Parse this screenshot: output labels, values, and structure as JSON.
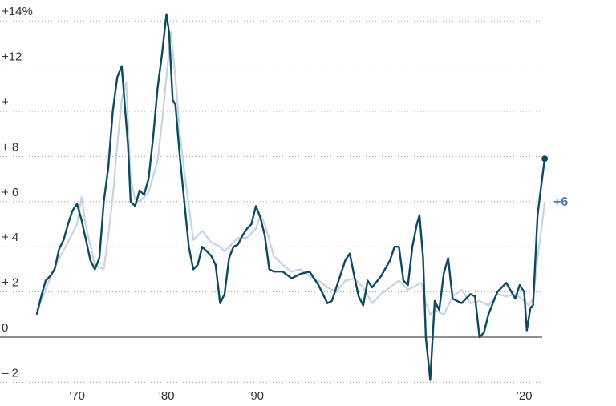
{
  "chart_data": {
    "type": "line",
    "title": "",
    "xlabel": "",
    "ylabel": "",
    "ylim": [
      -2.5,
      14
    ],
    "xlim": [
      1964.5,
      2022.5
    ],
    "y_ticks": [
      {
        "value": 14,
        "label": "+14%"
      },
      {
        "value": 12,
        "label": "+12"
      },
      {
        "value": 10,
        "label": "+"
      },
      {
        "value": 8,
        "label": "+ 8"
      },
      {
        "value": 6,
        "label": "+ 6"
      },
      {
        "value": 4,
        "label": "+ 4"
      },
      {
        "value": 2,
        "label": "+ 2"
      },
      {
        "value": 0,
        "label": "0"
      },
      {
        "value": -2,
        "label": "– 2"
      }
    ],
    "x_ticks": [
      {
        "value": 1970,
        "label": "’70"
      },
      {
        "value": 1980,
        "label": "’80"
      },
      {
        "value": 1990,
        "label": "’90"
      },
      {
        "value": 2020,
        "label": "’20"
      }
    ],
    "grid": true,
    "colors": {
      "series_a": "#0d4a60",
      "series_b": "#c7d3e0",
      "end_label": "#4a7fb0",
      "zero_line": "#222222"
    },
    "end_label_b": "+6",
    "series": [
      {
        "x": [
          1965.5,
          1966,
          1966.5,
          1967,
          1967.5,
          1968,
          1968.5,
          1969,
          1969.5,
          1970,
          1970.5,
          1971,
          1971.5,
          1972,
          1972.5,
          1973,
          1973.5,
          1974,
          1974.5,
          1975,
          1975.3,
          1975.7,
          1976,
          1976.5,
          1977,
          1977.5,
          1978,
          1978.5,
          1979,
          1979.5,
          1980,
          1980.3,
          1980.7,
          1981,
          1981.5,
          1982,
          1982.5,
          1983,
          1983.5,
          1984,
          1984.5,
          1985,
          1985.5,
          1986,
          1986.5,
          1987,
          1987.5,
          1988,
          1988.5,
          1989,
          1989.5,
          1990,
          1990.5,
          1991,
          1991.5,
          1992,
          1993,
          1994,
          1995,
          1996,
          1997,
          1998,
          1998.5,
          1999,
          2000,
          2000.5,
          2001,
          2001.5,
          2002,
          2002.5,
          2003,
          2004,
          2005,
          2005.5,
          2006,
          2006.5,
          2007,
          2007.5,
          2008,
          2008.3,
          2008.7,
          2009,
          2009.5,
          2010,
          2010.5,
          2011,
          2011.5,
          2012,
          2013,
          2014,
          2014.5,
          2015,
          2015.5,
          2016,
          2017,
          2018,
          2019,
          2019.5,
          2020,
          2020.3,
          2020.7,
          2021,
          2021.5,
          2022,
          2022.3
        ],
        "values": [
          1.0,
          1.8,
          2.5,
          2.7,
          3.0,
          3.9,
          4.3,
          5.0,
          5.6,
          5.9,
          5.2,
          4.3,
          3.4,
          3.0,
          3.5,
          6.0,
          7.5,
          10.0,
          11.5,
          12.0,
          10.5,
          8.5,
          6.0,
          5.8,
          6.5,
          6.3,
          7.0,
          8.8,
          11.0,
          12.5,
          14.3,
          13.5,
          10.5,
          10.3,
          8.0,
          6.0,
          4.0,
          3.0,
          3.2,
          4.0,
          3.8,
          3.6,
          3.2,
          1.5,
          1.9,
          3.5,
          4.0,
          4.1,
          4.5,
          4.8,
          5.0,
          5.8,
          5.3,
          4.5,
          3.0,
          2.9,
          2.9,
          2.6,
          2.8,
          2.9,
          2.3,
          1.5,
          1.6,
          2.2,
          3.4,
          3.7,
          2.7,
          1.8,
          1.4,
          2.5,
          2.2,
          2.7,
          3.4,
          4.0,
          4.0,
          2.5,
          2.3,
          4.0,
          5.0,
          5.4,
          3.5,
          0.0,
          -1.9,
          1.6,
          1.2,
          2.8,
          3.5,
          1.7,
          1.5,
          1.9,
          1.8,
          0.0,
          0.2,
          1.0,
          2.0,
          2.4,
          1.7,
          2.3,
          2.0,
          0.3,
          1.3,
          1.4,
          5.4,
          7.0,
          7.9
        ]
      },
      {
        "name": "",
        "x": [
          1965.5,
          1966,
          1967,
          1968,
          1969,
          1970,
          1970.5,
          1971,
          1972,
          1973,
          1973.5,
          1974,
          1974.5,
          1975,
          1975.5,
          1976,
          1976.5,
          1977,
          1978,
          1979,
          1979.5,
          1980,
          1980.5,
          1981,
          1981.5,
          1982,
          1983,
          1984,
          1985,
          1986,
          1986.5,
          1987,
          1988,
          1989,
          1990,
          1990.5,
          1991,
          1992,
          1993,
          1994,
          1995,
          1996,
          1997,
          1998,
          1999,
          2000,
          2001,
          2002,
          2003,
          2004,
          2005,
          2006,
          2007,
          2008,
          2008.5,
          2009,
          2009.5,
          2010,
          2011,
          2012,
          2013,
          2014,
          2015,
          2016,
          2017,
          2018,
          2019,
          2020,
          2020.5,
          2021,
          2021.5,
          2022,
          2022.3
        ],
        "values": [
          1.2,
          1.6,
          2.6,
          3.5,
          4.2,
          5.0,
          6.2,
          4.9,
          3.2,
          3.0,
          4.5,
          6.2,
          8.5,
          10.5,
          11.3,
          7.0,
          6.1,
          6.0,
          6.4,
          7.8,
          9.5,
          11.5,
          13.5,
          11.5,
          9.0,
          7.3,
          4.3,
          4.7,
          4.2,
          4.0,
          3.8,
          4.0,
          4.4,
          4.4,
          4.8,
          5.4,
          5.0,
          3.6,
          3.2,
          2.9,
          3.0,
          2.7,
          2.5,
          2.2,
          2.0,
          2.5,
          2.6,
          2.2,
          1.5,
          1.9,
          2.2,
          2.5,
          2.1,
          2.3,
          2.4,
          1.5,
          1.0,
          1.2,
          1.0,
          1.8,
          2.1,
          1.5,
          1.6,
          1.4,
          1.9,
          1.8,
          1.9,
          1.6,
          1.4,
          1.7,
          3.5,
          5.0,
          6.0
        ]
      }
    ]
  }
}
